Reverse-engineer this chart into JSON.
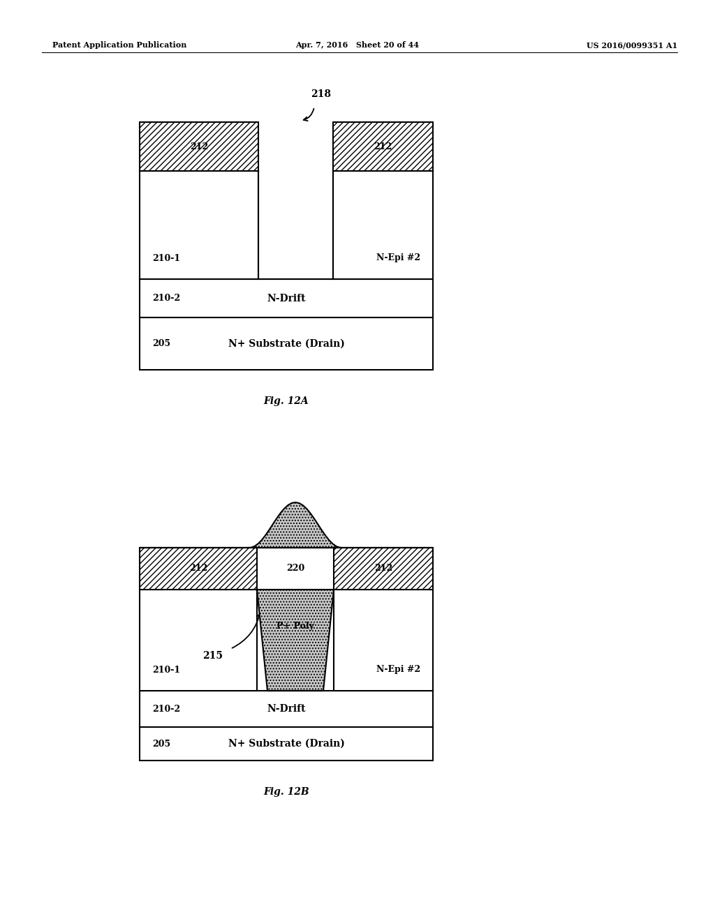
{
  "page_header_left": "Patent Application Publication",
  "page_header_mid": "Apr. 7, 2016   Sheet 20 of 44",
  "page_header_right": "US 2016/0099351 A1",
  "fig12a_caption": "Fig. 12A",
  "fig12b_caption": "Fig. 12B",
  "bg_color": "#ffffff",
  "line_color": "#000000",
  "labels": {
    "210_1": "210-1",
    "210_2": "210-2",
    "205": "205",
    "212": "212",
    "218": "218",
    "220": "220",
    "215": "215",
    "nepi2": "N-Epi #2",
    "ndrift": "N-Drift",
    "nsubstrate": "N+ Substrate (Drain)",
    "ppoly": "P+ Poly"
  }
}
